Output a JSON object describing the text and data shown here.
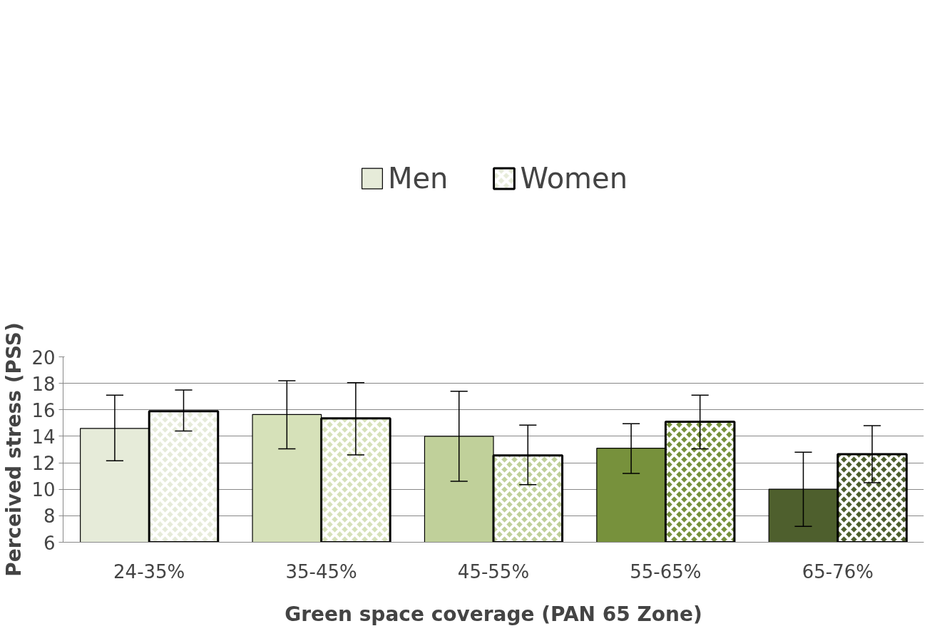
{
  "chart_data": {
    "type": "bar",
    "xlabel": "Green space coverage (PAN 65 Zone)",
    "ylabel": "Perceived stress (PSS)",
    "categories": [
      "24-35%",
      "35-45%",
      "45-55%",
      "55-65%",
      "65-76%"
    ],
    "series": [
      {
        "name": "Men",
        "colors": [
          "#e6ebd9",
          "#d6e1b9",
          "#c0d09a",
          "#77913c",
          "#4e5f2d"
        ],
        "values": [
          14.6,
          15.65,
          14.0,
          13.1,
          10.0
        ],
        "errors": [
          [
            12.15,
            17.1
          ],
          [
            13.05,
            18.2
          ],
          [
            10.6,
            17.4
          ],
          [
            11.2,
            14.95
          ],
          [
            7.2,
            12.8
          ]
        ]
      },
      {
        "name": "Women",
        "colors": [
          "#e6ebd9",
          "#d6e1b9",
          "#c0d09a",
          "#77913c",
          "#4e5f2d"
        ],
        "values": [
          15.9,
          15.35,
          12.55,
          15.1,
          12.65
        ],
        "errors": [
          [
            14.4,
            17.5
          ],
          [
            12.6,
            18.05
          ],
          [
            10.35,
            14.85
          ],
          [
            13.05,
            17.1
          ],
          [
            10.5,
            14.8
          ]
        ]
      }
    ],
    "ylim": [
      6,
      20
    ],
    "yticks": [
      6,
      8,
      10,
      12,
      14,
      16,
      18,
      20
    ],
    "grid": "y",
    "legend": "top"
  }
}
